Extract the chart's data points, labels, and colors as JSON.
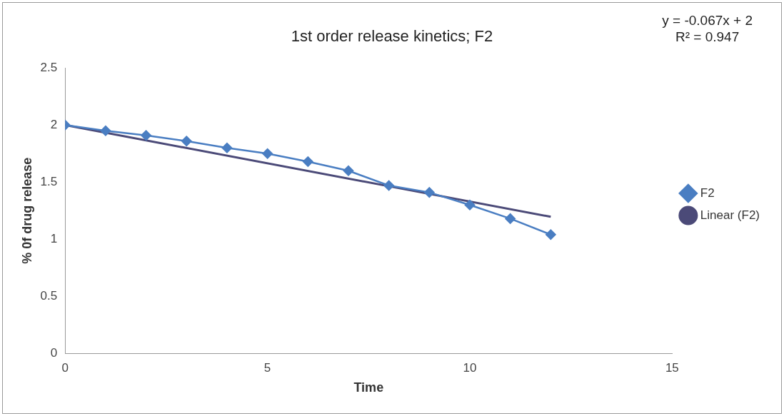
{
  "chart_data": {
    "type": "line",
    "title": "1st order release kinetics; F2",
    "xlabel": "Time",
    "ylabel": "% 0f drug release",
    "x": [
      0,
      1,
      2,
      3,
      4,
      5,
      6,
      7,
      8,
      9,
      10,
      11,
      12
    ],
    "series": [
      {
        "name": "F2",
        "color": "#4a7ec2",
        "values": [
          2.0,
          1.95,
          1.91,
          1.86,
          1.8,
          1.75,
          1.68,
          1.6,
          1.47,
          1.41,
          1.3,
          1.18,
          1.04
        ],
        "marker": "diamond"
      },
      {
        "name": "Linear (F2)",
        "type": "line",
        "color": "#4b4a78",
        "x": [
          0,
          12
        ],
        "values": [
          2,
          1.196
        ],
        "marker": "none"
      }
    ],
    "xlim": [
      0,
      15
    ],
    "xticks": [
      0,
      5,
      10,
      15
    ],
    "ylim": [
      0,
      2.5
    ],
    "yticks": [
      0,
      0.5,
      1,
      1.5,
      2,
      2.5
    ],
    "grid": false,
    "legend": "right",
    "annotations": [
      "y = -0.067x + 2\nR² = 0.947"
    ]
  }
}
